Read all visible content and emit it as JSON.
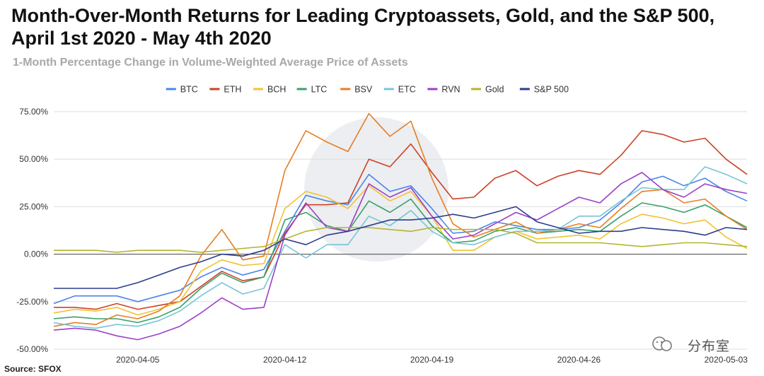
{
  "chart_data": {
    "type": "line",
    "title": "Month-Over-Month Returns for Leading Cryptoassets, Gold, and the S&P 500, April 1st 2020 - May 4th 2020",
    "subtitle": "1-Month Percentage Change in Volume-Weighted Average Price of Assets",
    "source": "Source: SFOX",
    "x": [
      "2020-04-01",
      "2020-04-02",
      "2020-04-03",
      "2020-04-04",
      "2020-04-05",
      "2020-04-06",
      "2020-04-07",
      "2020-04-08",
      "2020-04-09",
      "2020-04-10",
      "2020-04-11",
      "2020-04-12",
      "2020-04-13",
      "2020-04-14",
      "2020-04-15",
      "2020-04-16",
      "2020-04-17",
      "2020-04-18",
      "2020-04-19",
      "2020-04-20",
      "2020-04-21",
      "2020-04-22",
      "2020-04-23",
      "2020-04-24",
      "2020-04-25",
      "2020-04-26",
      "2020-04-27",
      "2020-04-28",
      "2020-04-29",
      "2020-04-30",
      "2020-05-01",
      "2020-05-02",
      "2020-05-03",
      "2020-05-04"
    ],
    "x_ticks": [
      "2020-04-05",
      "2020-04-12",
      "2020-04-19",
      "2020-04-26",
      "2020-05-03"
    ],
    "y_ticks": [
      75,
      50,
      25,
      0,
      -25,
      -50
    ],
    "ylim": [
      -50,
      75
    ],
    "y_tick_format": "percent_2dp",
    "grid": "horizontal",
    "legend_position": "top",
    "series": [
      {
        "name": "BTC",
        "color": "#4a86e8",
        "values": [
          -26,
          -22,
          -22,
          -22,
          -25,
          -22,
          -19,
          -12,
          -7,
          -11,
          -8,
          12,
          31,
          28,
          26,
          42,
          33,
          36,
          24,
          11,
          12,
          17,
          15,
          13,
          13,
          14,
          18,
          27,
          38,
          41,
          36,
          40,
          33,
          28
        ]
      },
      {
        "name": "ETH",
        "color": "#cc4125",
        "values": [
          -28,
          -28,
          -29,
          -26,
          -29,
          -27,
          -25,
          -17,
          -9,
          -14,
          -12,
          11,
          26,
          26,
          27,
          50,
          46,
          58,
          43,
          29,
          30,
          40,
          44,
          36,
          41,
          44,
          42,
          52,
          65,
          63,
          59,
          61,
          50,
          42
        ]
      },
      {
        "name": "BCH",
        "color": "#f1c232",
        "values": [
          -31,
          -29,
          -30,
          -28,
          -32,
          -29,
          -25,
          -9,
          -3,
          -6,
          -5,
          24,
          33,
          30,
          24,
          36,
          28,
          33,
          20,
          2,
          2,
          9,
          12,
          8,
          9,
          10,
          8,
          16,
          21,
          19,
          16,
          18,
          9,
          3
        ]
      },
      {
        "name": "LTC",
        "color": "#38a169",
        "values": [
          -34,
          -33,
          -34,
          -34,
          -36,
          -33,
          -28,
          -18,
          -10,
          -15,
          -12,
          18,
          22,
          15,
          12,
          28,
          22,
          29,
          15,
          6,
          7,
          12,
          14,
          11,
          12,
          13,
          12,
          20,
          27,
          25,
          22,
          26,
          20,
          14
        ]
      },
      {
        "name": "BSV",
        "color": "#e67e22",
        "values": [
          -38,
          -36,
          -37,
          -32,
          -34,
          -30,
          -22,
          -1,
          13,
          -3,
          -1,
          44,
          65,
          59,
          54,
          74,
          62,
          70,
          40,
          16,
          9,
          13,
          17,
          11,
          13,
          16,
          14,
          24,
          33,
          34,
          27,
          29,
          20,
          13
        ]
      },
      {
        "name": "ETC",
        "color": "#76c5d6",
        "values": [
          -36,
          -38,
          -39,
          -37,
          -38,
          -35,
          -30,
          -22,
          -15,
          -21,
          -18,
          5,
          -2,
          5,
          5,
          20,
          15,
          23,
          12,
          6,
          5,
          9,
          12,
          12,
          13,
          20,
          20,
          28,
          35,
          34,
          34,
          46,
          42,
          37
        ]
      },
      {
        "name": "RVN",
        "color": "#9b3fc7",
        "values": [
          -40,
          -39,
          -40,
          -43,
          -45,
          -42,
          -38,
          -31,
          -23,
          -29,
          -28,
          10,
          27,
          14,
          12,
          37,
          30,
          35,
          20,
          8,
          10,
          16,
          22,
          18,
          24,
          30,
          27,
          37,
          43,
          34,
          30,
          37,
          34,
          32
        ]
      },
      {
        "name": "Gold",
        "color": "#b5b52e",
        "values": [
          2,
          2,
          2,
          1,
          2,
          2,
          2,
          1,
          2,
          3,
          4,
          8,
          12,
          14,
          14,
          14,
          13,
          12,
          14,
          13,
          13,
          13,
          11,
          6,
          6,
          6,
          6,
          5,
          4,
          5,
          6,
          6,
          5,
          4
        ]
      },
      {
        "name": "S&P 500",
        "color": "#2b3d8c",
        "values": [
          -18,
          -18,
          -18,
          -18,
          -15,
          -11,
          -7,
          -4,
          0,
          -1,
          2,
          8,
          5,
          10,
          12,
          15,
          18,
          18,
          19,
          21,
          19,
          22,
          25,
          17,
          14,
          11,
          12,
          12,
          14,
          13,
          12,
          10,
          14,
          13
        ]
      }
    ]
  },
  "watermark": {
    "text": "分布室"
  }
}
